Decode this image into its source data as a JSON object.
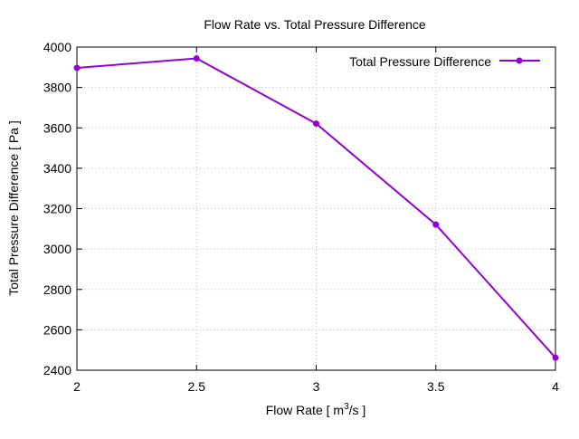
{
  "chart_data": {
    "type": "line",
    "title": "Flow Rate vs. Total Pressure Difference",
    "xlabel": "Flow Rate [ m",
    "xlabel_sup": "3",
    "xlabel_tail": "/s ]",
    "ylabel": "Total Pressure Difference [ Pa ]",
    "xlim": [
      2,
      4
    ],
    "ylim": [
      2400,
      4000
    ],
    "xticks": [
      "2",
      "2.5",
      "3",
      "3.5",
      "4"
    ],
    "xtick_values": [
      2,
      2.5,
      3,
      3.5,
      4
    ],
    "yticks": [
      "2400",
      "2600",
      "2800",
      "3000",
      "3200",
      "3400",
      "3600",
      "3800",
      "4000"
    ],
    "ytick_values": [
      2400,
      2600,
      2800,
      3000,
      3200,
      3400,
      3600,
      3800,
      4000
    ],
    "grid": true,
    "legend_position": "top-right",
    "series": [
      {
        "name": "Total Pressure Difference",
        "color": "#9400d3",
        "x": [
          2,
          2.5,
          3,
          3.5,
          4
        ],
        "y": [
          3897,
          3944,
          3621,
          3121,
          2462
        ]
      }
    ]
  }
}
